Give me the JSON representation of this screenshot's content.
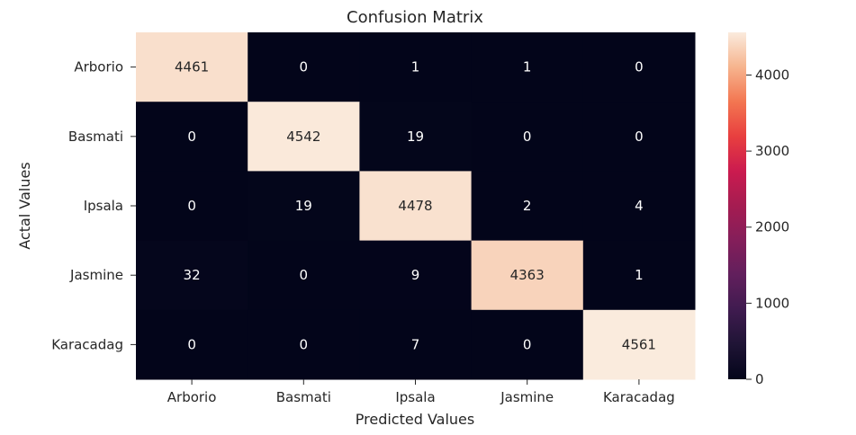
{
  "chart_data": {
    "type": "heatmap",
    "title": "Confusion Matrix",
    "xlabel": "Predicted Values",
    "ylabel": "Actal Values",
    "x_categories": [
      "Arborio",
      "Basmati",
      "Ipsala",
      "Jasmine",
      "Karacadag"
    ],
    "y_categories": [
      "Arborio",
      "Basmati",
      "Ipsala",
      "Jasmine",
      "Karacadag"
    ],
    "values": [
      [
        4461,
        0,
        1,
        1,
        0
      ],
      [
        0,
        4542,
        19,
        0,
        0
      ],
      [
        0,
        19,
        4478,
        2,
        4
      ],
      [
        32,
        0,
        9,
        4363,
        1
      ],
      [
        0,
        0,
        7,
        0,
        4561
      ]
    ],
    "colorbar": {
      "ticks": [
        0,
        1000,
        2000,
        3000,
        4000
      ],
      "min": 0,
      "max": 4561,
      "colormap": "rocket"
    },
    "colors": {
      "low": "#03051a",
      "high": "#faebdd",
      "low_text": "#ffffff",
      "high_text": "#262626"
    }
  }
}
